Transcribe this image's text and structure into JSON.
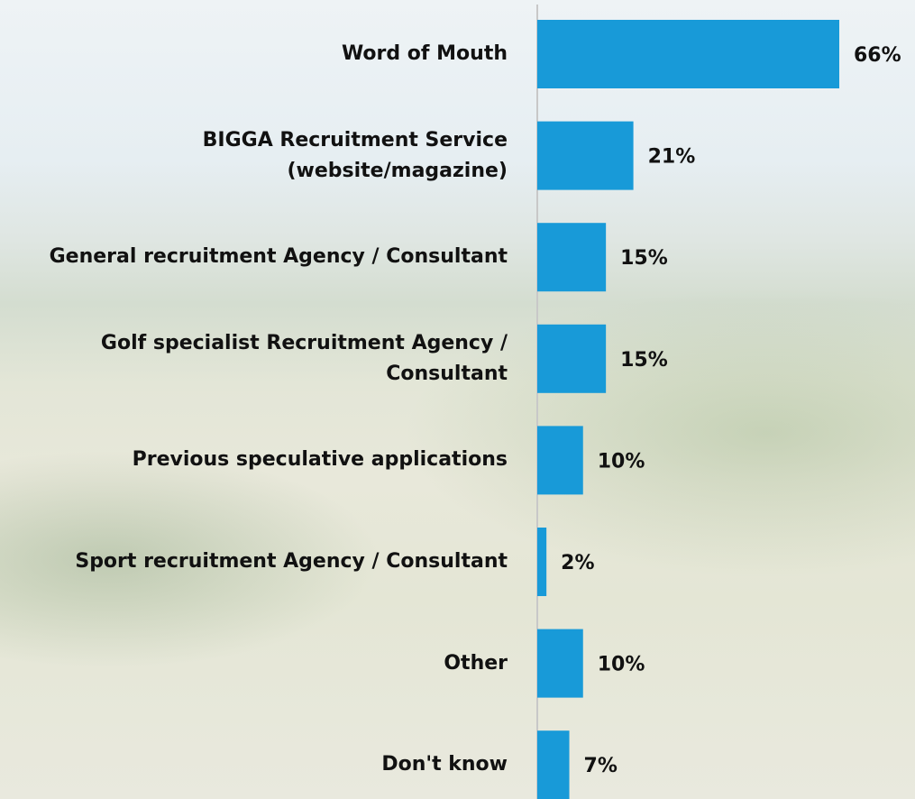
{
  "chart_data": {
    "type": "hbar",
    "categories": [
      "Word of Mouth",
      "BIGGA Recruitment Service (website/magazine)",
      "General recruitment Agency / Consultant",
      "Golf specialist Recruitment Agency / Consultant",
      "Previous speculative applications",
      "Sport recruitment Agency / Consultant",
      "Other",
      "Don't know"
    ],
    "values": [
      66,
      21,
      15,
      15,
      10,
      2,
      10,
      7
    ],
    "value_labels": [
      "66%",
      "21%",
      "15%",
      "15%",
      "10%",
      "2%",
      "10%",
      "7%"
    ],
    "color": "#189ad8"
  }
}
